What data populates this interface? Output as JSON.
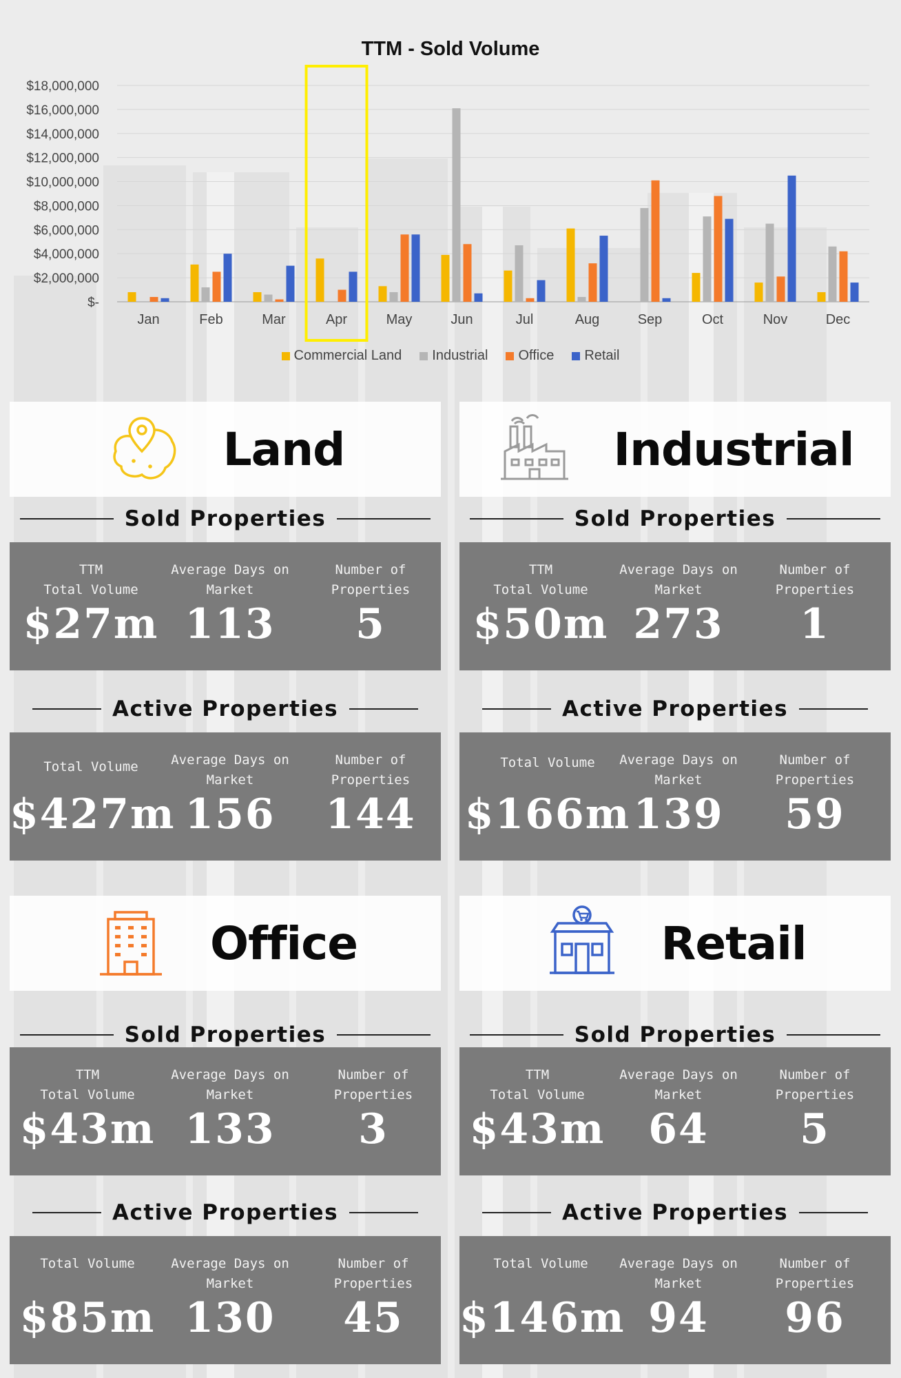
{
  "chart_data": {
    "type": "bar",
    "title": "TTM - Sold Volume",
    "categories": [
      "Jan",
      "Feb",
      "Mar",
      "Apr",
      "May",
      "Jun",
      "Jul",
      "Aug",
      "Sep",
      "Oct",
      "Nov",
      "Dec"
    ],
    "ylim": [
      0,
      18000000
    ],
    "yticks": [
      "$-",
      "$2,000,000",
      "$4,000,000",
      "$6,000,000",
      "$8,000,000",
      "$10,000,000",
      "$12,000,000",
      "$14,000,000",
      "$16,000,000",
      "$18,000,000"
    ],
    "grid": true,
    "legend_position": "bottom",
    "highlight_category": "Apr",
    "highlight_color": "#ffee00",
    "series": [
      {
        "name": "Commercial Land",
        "color": "#f5b700",
        "values": [
          800000,
          3100000,
          800000,
          3600000,
          1300000,
          3900000,
          2600000,
          6100000,
          0,
          2400000,
          1600000,
          800000
        ]
      },
      {
        "name": "Industrial",
        "color": "#b5b5b5",
        "values": [
          0,
          1200000,
          600000,
          0,
          800000,
          16100000,
          4700000,
          400000,
          7800000,
          7100000,
          6500000,
          4600000
        ]
      },
      {
        "name": "Office",
        "color": "#f47a2a",
        "values": [
          400000,
          2500000,
          200000,
          1000000,
          5600000,
          4800000,
          300000,
          3200000,
          10100000,
          8800000,
          2100000,
          4200000
        ]
      },
      {
        "name": "Retail",
        "color": "#3b63c9",
        "values": [
          300000,
          4000000,
          3000000,
          2500000,
          5600000,
          700000,
          1800000,
          5500000,
          300000,
          6900000,
          10500000,
          1600000
        ]
      }
    ]
  },
  "categories": [
    {
      "key": "land",
      "title": "Land",
      "icon": "map-pin-icon",
      "icon_color": "#f5c518",
      "sold": {
        "label": "Sold Properties",
        "col1_label": "TTM\nTotal Volume",
        "col1_value": "$27m",
        "col2_label": "Average Days on\nMarket",
        "col2_value": "113",
        "col3_label": "Number of\nProperties",
        "col3_value": "5"
      },
      "active": {
        "label": "Active Properties",
        "col1_label": "Total Volume",
        "col1_value": "$427m",
        "col2_label": "Average Days on\nMarket",
        "col2_value": "156",
        "col3_label": "Number of\nProperties",
        "col3_value": "144"
      }
    },
    {
      "key": "industrial",
      "title": "Industrial",
      "icon": "factory-icon",
      "icon_color": "#9a9a9a",
      "sold": {
        "label": "Sold Properties",
        "col1_label": "TTM\nTotal Volume",
        "col1_value": "$50m",
        "col2_label": "Average Days on\nMarket",
        "col2_value": "273",
        "col3_label": "Number of\nProperties",
        "col3_value": "1"
      },
      "active": {
        "label": "Active Properties",
        "col1_label": "Total Volume",
        "col1_value": "$166m",
        "col2_label": "Average Days on\nMarket",
        "col2_value": "139",
        "col3_label": "Number of\nProperties",
        "col3_value": "59"
      }
    },
    {
      "key": "office",
      "title": "Office",
      "icon": "office-building-icon",
      "icon_color": "#f47a2a",
      "sold": {
        "label": "Sold Properties",
        "col1_label": "TTM\nTotal Volume",
        "col1_value": "$43m",
        "col2_label": "Average Days on\nMarket",
        "col2_value": "133",
        "col3_label": "Number of\nProperties",
        "col3_value": "3"
      },
      "active": {
        "label": "Active Properties",
        "col1_label": "Total Volume",
        "col1_value": "$85m",
        "col2_label": "Average Days on\nMarket",
        "col2_value": "130",
        "col3_label": "Number of\nProperties",
        "col3_value": "45"
      }
    },
    {
      "key": "retail",
      "title": "Retail",
      "icon": "storefront-cart-icon",
      "icon_color": "#3b63c9",
      "sold": {
        "label": "Sold Properties",
        "col1_label": "TTM\nTotal Volume",
        "col1_value": "$43m",
        "col2_label": "Average Days on\nMarket",
        "col2_value": "64",
        "col3_label": "Number of\nProperties",
        "col3_value": "5"
      },
      "active": {
        "label": "Active Properties",
        "col1_label": "Total Volume",
        "col1_value": "$146m",
        "col2_label": "Average Days on\nMarket",
        "col2_value": "94",
        "col3_label": "Number of\nProperties",
        "col3_value": "96"
      }
    }
  ]
}
